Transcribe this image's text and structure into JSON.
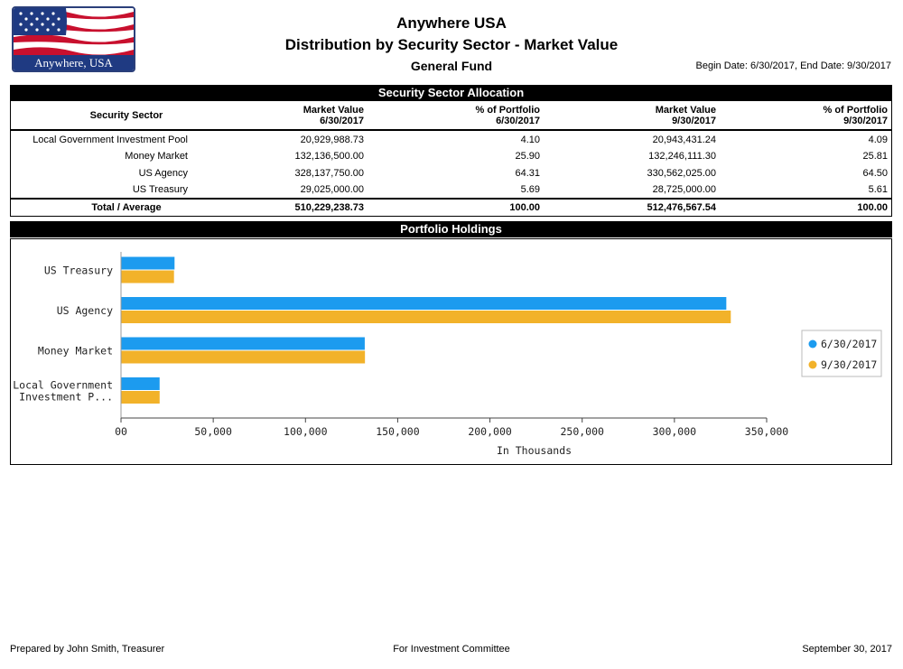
{
  "logo": {
    "caption": "Anywhere, USA"
  },
  "header": {
    "title": "Anywhere USA",
    "subtitle": "Distribution by Security Sector - Market Value",
    "fund": "General Fund",
    "dates": "Begin Date: 6/30/2017, End Date: 9/30/2017"
  },
  "allocation": {
    "section_title": "Security Sector Allocation",
    "headers": {
      "sector": "Security Sector",
      "mv1_line1": "Market Value",
      "mv1_line2": "6/30/2017",
      "pct1_line1": "% of Portfolio",
      "pct1_line2": "6/30/2017",
      "mv2_line1": "Market Value",
      "mv2_line2": "9/30/2017",
      "pct2_line1": "% of Portfolio",
      "pct2_line2": "9/30/2017"
    },
    "rows": [
      {
        "sector": "Local Government Investment Pool",
        "mv1": "20,929,988.73",
        "pct1": "4.10",
        "mv2": "20,943,431.24",
        "pct2": "4.09"
      },
      {
        "sector": "Money Market",
        "mv1": "132,136,500.00",
        "pct1": "25.90",
        "mv2": "132,246,111.30",
        "pct2": "25.81"
      },
      {
        "sector": "US Agency",
        "mv1": "328,137,750.00",
        "pct1": "64.31",
        "mv2": "330,562,025.00",
        "pct2": "64.50"
      },
      {
        "sector": "US Treasury",
        "mv1": "29,025,000.00",
        "pct1": "5.69",
        "mv2": "28,725,000.00",
        "pct2": "5.61"
      }
    ],
    "total": {
      "sector": "Total / Average",
      "mv1": "510,229,238.73",
      "pct1": "100.00",
      "mv2": "512,476,567.54",
      "pct2": "100.00"
    }
  },
  "holdings": {
    "section_title": "Portfolio Holdings"
  },
  "chart_data": {
    "type": "bar",
    "orientation": "horizontal",
    "categories": [
      "US Treasury",
      "US Agency",
      "Money Market",
      "Local Government Investment P..."
    ],
    "category_label_lines": [
      [
        "US Treasury"
      ],
      [
        "US Agency"
      ],
      [
        "Money Market"
      ],
      [
        "Local Government",
        "Investment P..."
      ]
    ],
    "series": [
      {
        "name": "6/30/2017",
        "values": [
          29025,
          328138,
          132137,
          20930
        ],
        "color": "#1c9bef"
      },
      {
        "name": "9/30/2017",
        "values": [
          28725,
          330562,
          132246,
          20943
        ],
        "color": "#f2b22a"
      }
    ],
    "xlabel": "In Thousands",
    "xlim": [
      0,
      350000
    ],
    "xticks": [
      "00",
      "50,000",
      "100,000",
      "150,000",
      "200,000",
      "250,000",
      "300,000",
      "350,000"
    ],
    "legend_position": "right",
    "grid": false
  },
  "footer": {
    "left": "Prepared by John Smith, Treasurer",
    "center": "For Investment Committee",
    "right": "September 30, 2017"
  }
}
